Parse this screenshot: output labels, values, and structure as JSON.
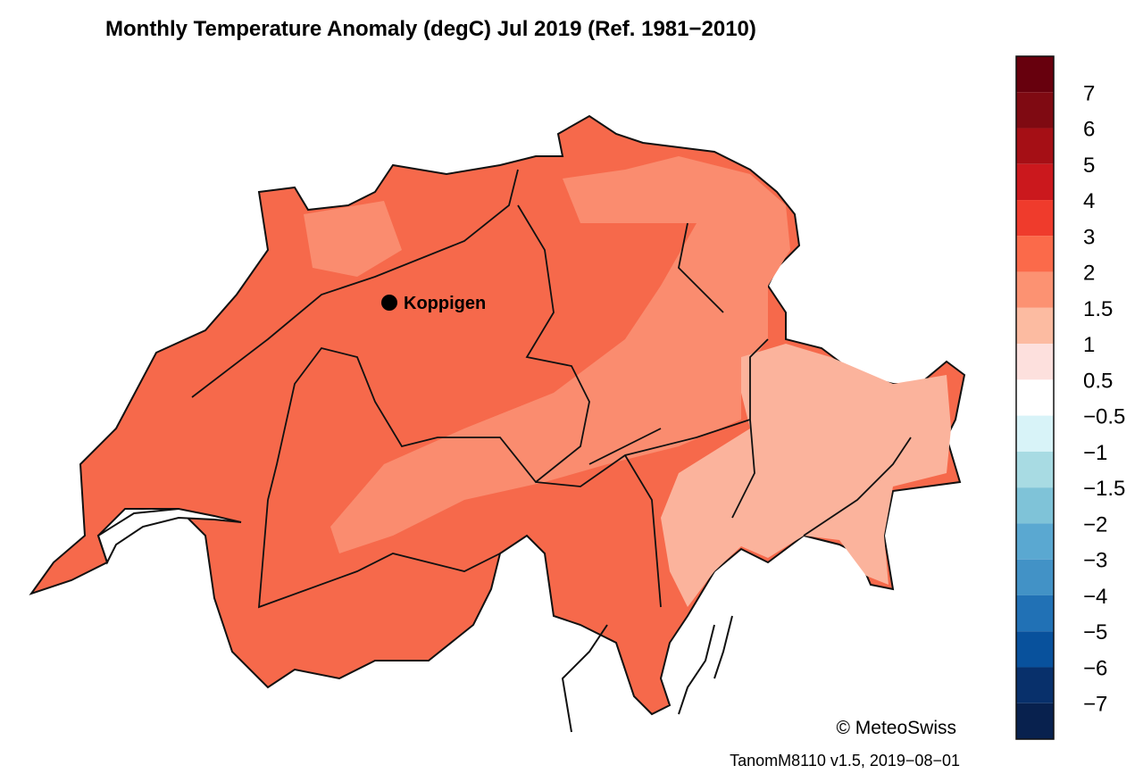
{
  "header": {
    "title": "Monthly Temperature Anomaly (degC) Jul 2019  (Ref. 1981−2010)"
  },
  "station": {
    "name": "Koppigen"
  },
  "copyright": "© MeteoSwiss",
  "footer": "TanomM8110 v1.5, 2019−08−01",
  "legend": {
    "labels": [
      "7",
      "6",
      "5",
      "4",
      "3",
      "2",
      "1.5",
      "1",
      "0.5",
      "−0.5",
      "−1",
      "−1.5",
      "−2",
      "−3",
      "−4",
      "−5",
      "−6",
      "−7"
    ],
    "colors": [
      "#67000d",
      "#7f0a12",
      "#a50f15",
      "#cb181d",
      "#ef3b2c",
      "#fb6a4a",
      "#fc9272",
      "#fcbba1",
      "#fde0dd",
      "#ffffff",
      "#d8f3f8",
      "#a8dbe3",
      "#7fc3d8",
      "#5aa8d1",
      "#4292c6",
      "#2171b5",
      "#08519c",
      "#08306b",
      "#08214e"
    ]
  }
}
